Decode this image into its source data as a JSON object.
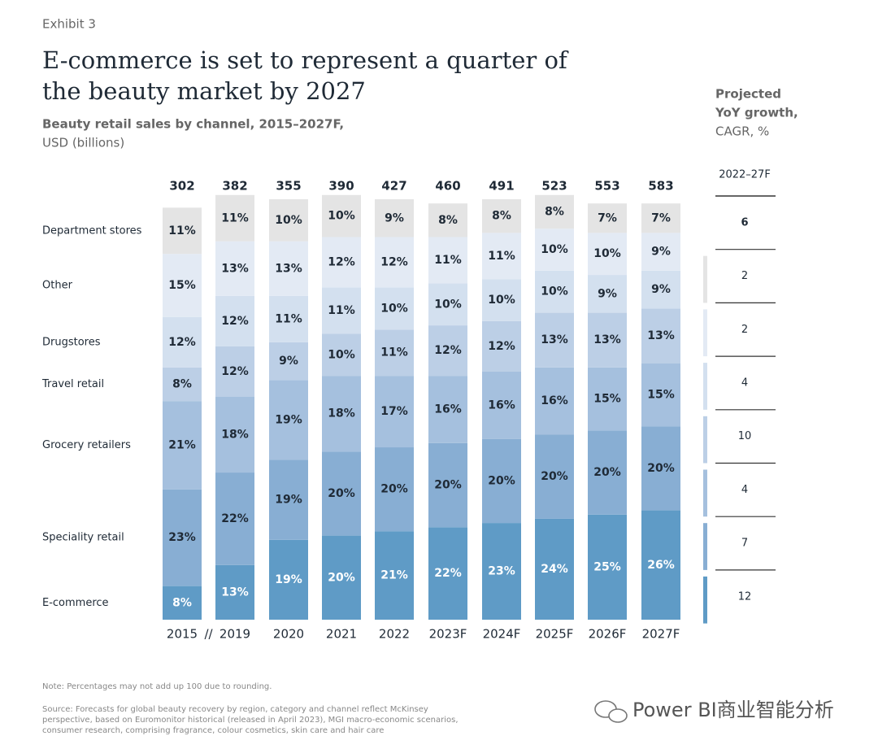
{
  "chart_data": {
    "type": "stacked_bar_percent",
    "exhibit": "Exhibit 3",
    "title": [
      "E-commerce is set to represent a quarter of",
      "the beauty market by 2027"
    ],
    "subtitle": [
      "Beauty retail sales by channel, 2015–2027F,",
      "USD (billions)"
    ],
    "categories": [
      "2015",
      "2019",
      "2020",
      "2021",
      "2022",
      "2023F",
      "2024F",
      "2025F",
      "2026F",
      "2027F"
    ],
    "axis_break": "//",
    "totals": [
      302,
      382,
      355,
      390,
      427,
      460,
      491,
      523,
      553,
      583
    ],
    "ylim": [
      0,
      100
    ],
    "series": [
      {
        "name": "E-commerce",
        "color": "#5f9bc6",
        "label_color": "#ffffff",
        "values": [
          8,
          13,
          19,
          20,
          21,
          22,
          23,
          24,
          25,
          26
        ],
        "value_labels": [
          "8%",
          "13%",
          "19%",
          "20%",
          "21%",
          "22%",
          "23%",
          "24%",
          "25%",
          "26%"
        ],
        "cagr": 12
      },
      {
        "name": "Speciality retail",
        "color": "#88aed3",
        "label_color": "#1f2a36",
        "values": [
          23,
          22,
          19,
          20,
          20,
          20,
          20,
          20,
          20,
          20
        ],
        "value_labels": [
          "23%",
          "22%",
          "19%",
          "20%",
          "20%",
          "20%",
          "20%",
          "20%",
          "20%",
          "20%"
        ],
        "cagr": 7
      },
      {
        "name": "Grocery retailers",
        "color": "#a5c0de",
        "label_color": "#1f2a36",
        "values": [
          21,
          18,
          19,
          18,
          17,
          16,
          16,
          16,
          15,
          15
        ],
        "value_labels": [
          "21%",
          "18%",
          "19%",
          "18%",
          "17%",
          "16%",
          "16%",
          "16%",
          "15%",
          "15%"
        ],
        "cagr": 4
      },
      {
        "name": "Travel retail",
        "color": "#bccfe6",
        "label_color": "#1f2a36",
        "values": [
          8,
          12,
          9,
          10,
          11,
          12,
          12,
          13,
          13,
          13
        ],
        "value_labels": [
          "8%",
          "12%",
          "9%",
          "10%",
          "11%",
          "12%",
          "12%",
          "13%",
          "13%",
          "13%"
        ],
        "cagr": 10
      },
      {
        "name": "Drugstores",
        "color": "#d3e0ef",
        "label_color": "#1f2a36",
        "values": [
          12,
          12,
          11,
          11,
          10,
          10,
          10,
          10,
          9,
          9
        ],
        "value_labels": [
          "12%",
          "12%",
          "11%",
          "11%",
          "10%",
          "10%",
          "10%",
          "10%",
          "9%",
          "9%"
        ],
        "cagr": 4
      },
      {
        "name": "Other",
        "color": "#e3eaf4",
        "label_color": "#1f2a36",
        "values": [
          15,
          13,
          13,
          12,
          12,
          11,
          11,
          10,
          10,
          9
        ],
        "value_labels": [
          "15%",
          "13%",
          "13%",
          "12%",
          "12%",
          "11%",
          "11%",
          "10%",
          "10%",
          "9%"
        ],
        "cagr": 2
      },
      {
        "name": "Department stores",
        "color": "#e4e4e4",
        "label_color": "#1f2a36",
        "values": [
          11,
          11,
          10,
          10,
          9,
          8,
          8,
          8,
          7,
          7
        ],
        "value_labels": [
          "11%",
          "11%",
          "10%",
          "10%",
          "9%",
          "8%",
          "8%",
          "8%",
          "7%",
          "7%"
        ],
        "cagr": 2
      }
    ],
    "cagr_header": [
      "Projected",
      "YoY growth,",
      "CAGR, %"
    ],
    "cagr_period": "2022–27F",
    "total_cagr": 6,
    "note": "Note: Percentages may not add up 100 due to rounding.",
    "source": [
      "Source: Forecasts for global beauty recovery by region, category and channel reflect McKinsey",
      "perspective, based on Euromonitor historical (released in April 2023), MGI macro-economic scenarios,",
      "consumer research, comprising fragrance, colour cosmetics, skin care and hair care"
    ],
    "watermark": "Power BI商业智能分析"
  }
}
